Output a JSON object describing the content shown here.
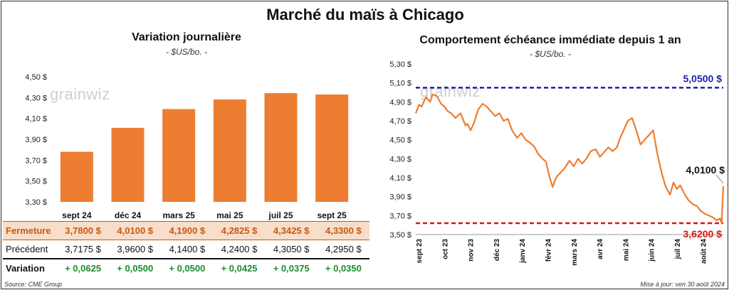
{
  "title": "Marché du maïs à Chicago",
  "left": {
    "subtitle": "Variation journalière",
    "unit": "- $US/bo. -",
    "watermark": "grainwiz"
  },
  "right": {
    "subtitle": "Comportement échéance immédiate depuis 1 an",
    "unit": "- $US/bo. -",
    "watermark": "grainwiz",
    "high_label": "5,0500 $",
    "low_label": "3,6200 $",
    "last_label": "4,0100 $"
  },
  "table": {
    "rows": [
      {
        "label": "Fermeture",
        "cells": [
          "3,7800  $",
          "4,0100  $",
          "4,1900  $",
          "4,2825  $",
          "4,3425  $",
          "4,3300  $"
        ]
      },
      {
        "label": "Précédent",
        "cells": [
          "3,7175  $",
          "3,9600  $",
          "4,1400  $",
          "4,2400  $",
          "4,3050  $",
          "4,2950  $"
        ]
      },
      {
        "label": "Variation",
        "cells": [
          "+ 0,0625",
          "+ 0,0500",
          "+ 0,0500",
          "+ 0,0425",
          "+ 0,0375",
          "+ 0,0350"
        ]
      }
    ]
  },
  "footer": {
    "source": "Source: CME Group",
    "updated": "Mise à jour: ven 30 août 2024"
  },
  "colors": {
    "bar": "#ed7d31",
    "line": "#ed7d31",
    "high": "#1f1fa8",
    "low": "#e01010",
    "positive": "#1e8a2e"
  },
  "chart_data": [
    {
      "type": "bar",
      "title": "Variation journalière",
      "ylabel": "$US/bo.",
      "categories": [
        "sept 24",
        "déc 24",
        "mars 25",
        "mai 25",
        "juil 25",
        "sept 25"
      ],
      "values": [
        3.78,
        4.01,
        4.19,
        4.2825,
        4.3425,
        4.33
      ],
      "ylim": [
        3.3,
        4.5
      ],
      "yticks": [
        3.3,
        3.5,
        3.7,
        3.9,
        4.1,
        4.3,
        4.5
      ],
      "ytick_labels": [
        "3,30 $",
        "3,50 $",
        "3,70 $",
        "3,90 $",
        "4,10 $",
        "4,30 $",
        "4,50 $"
      ],
      "grid": false
    },
    {
      "type": "line",
      "title": "Comportement échéance immédiate depuis 1 an",
      "ylabel": "$US/bo.",
      "ylim": [
        3.5,
        5.3
      ],
      "yticks": [
        3.5,
        3.7,
        3.9,
        4.1,
        4.3,
        4.5,
        4.7,
        4.9,
        5.1,
        5.3
      ],
      "ytick_labels": [
        "3,50 $",
        "3,70 $",
        "3,90 $",
        "4,10 $",
        "4,30 $",
        "4,50 $",
        "4,70 $",
        "4,90 $",
        "5,10 $",
        "5,30 $"
      ],
      "x_labels": [
        "sept 23",
        "oct 23",
        "nov 23",
        "déc 23",
        "janv 24",
        "févr 24",
        "mars 24",
        "avr 24",
        "mai 24",
        "juin 24",
        "juil 24",
        "août 24"
      ],
      "high": 5.05,
      "low": 3.62,
      "last": 4.01,
      "x": [
        "2023-09-01",
        "2023-09-05",
        "2023-09-08",
        "2023-09-13",
        "2023-09-18",
        "2023-09-21",
        "2023-09-26",
        "2023-10-01",
        "2023-10-05",
        "2023-10-09",
        "2023-10-13",
        "2023-10-18",
        "2023-10-24",
        "2023-10-30",
        "2023-11-01",
        "2023-11-05",
        "2023-11-09",
        "2023-11-14",
        "2023-11-19",
        "2023-11-24",
        "2023-11-29",
        "2023-12-04",
        "2023-12-09",
        "2023-12-14",
        "2023-12-19",
        "2023-12-24",
        "2023-12-30",
        "2024-01-04",
        "2024-01-09",
        "2024-01-14",
        "2024-01-19",
        "2024-01-24",
        "2024-01-29",
        "2024-02-02",
        "2024-02-06",
        "2024-02-10",
        "2024-02-14",
        "2024-02-19",
        "2024-02-24",
        "2024-03-01",
        "2024-03-06",
        "2024-03-11",
        "2024-03-16",
        "2024-03-21",
        "2024-03-26",
        "2024-04-01",
        "2024-04-06",
        "2024-04-11",
        "2024-04-16",
        "2024-04-21",
        "2024-04-26",
        "2024-04-30",
        "2024-05-04",
        "2024-05-09",
        "2024-05-14",
        "2024-05-19",
        "2024-05-24",
        "2024-05-29",
        "2024-06-03",
        "2024-06-08",
        "2024-06-13",
        "2024-06-18",
        "2024-06-23",
        "2024-06-28",
        "2024-07-02",
        "2024-07-06",
        "2024-07-10",
        "2024-07-15",
        "2024-07-20",
        "2024-07-25",
        "2024-07-30",
        "2024-08-03",
        "2024-08-08",
        "2024-08-13",
        "2024-08-18",
        "2024-08-22",
        "2024-08-26",
        "2024-08-28",
        "2024-08-30"
      ],
      "y": [
        4.78,
        4.87,
        4.85,
        4.95,
        4.9,
        4.98,
        4.96,
        4.88,
        4.85,
        4.8,
        4.78,
        4.73,
        4.78,
        4.65,
        4.67,
        4.6,
        4.68,
        4.82,
        4.88,
        4.85,
        4.8,
        4.75,
        4.78,
        4.7,
        4.72,
        4.6,
        4.52,
        4.57,
        4.5,
        4.47,
        4.43,
        4.35,
        4.3,
        4.27,
        4.12,
        4.0,
        4.1,
        4.15,
        4.2,
        4.28,
        4.22,
        4.3,
        4.25,
        4.3,
        4.38,
        4.4,
        4.32,
        4.37,
        4.42,
        4.38,
        4.42,
        4.52,
        4.6,
        4.7,
        4.73,
        4.6,
        4.45,
        4.5,
        4.55,
        4.6,
        4.35,
        4.15,
        4.0,
        3.92,
        4.05,
        3.98,
        4.02,
        3.93,
        3.86,
        3.82,
        3.8,
        3.75,
        3.72,
        3.7,
        3.68,
        3.65,
        3.67,
        3.62,
        4.01
      ]
    }
  ]
}
